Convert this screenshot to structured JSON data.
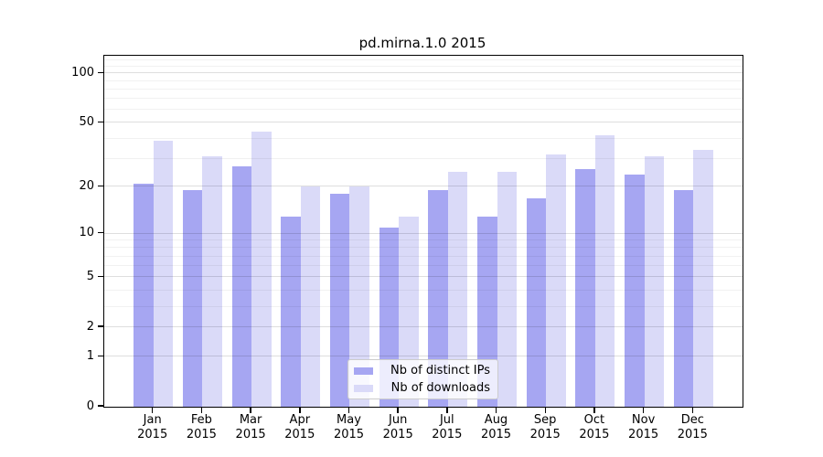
{
  "title": "pd.mirna.1.0 2015",
  "chart_data": {
    "type": "bar",
    "title": "pd.mirna.1.0 2015",
    "categories": [
      "Jan 2015",
      "Feb 2015",
      "Mar 2015",
      "Apr 2015",
      "May 2015",
      "Jun 2015",
      "Jul 2015",
      "Aug 2015",
      "Sep 2015",
      "Oct 2015",
      "Nov 2015",
      "Dec 2015"
    ],
    "series": [
      {
        "name": "Nb of distinct IPs",
        "color": "#a6a6f2",
        "values": [
          21,
          19,
          27,
          13,
          18,
          11,
          19,
          13,
          17,
          26,
          24,
          19
        ]
      },
      {
        "name": "Nb of downloads",
        "color": "#dadaf8",
        "values": [
          39,
          31,
          44,
          20,
          20,
          13,
          25,
          25,
          32,
          42,
          31,
          34
        ]
      }
    ],
    "xlabel": "",
    "ylabel": "",
    "yscale": "log1p",
    "ylim": [
      0,
      128
    ],
    "y_major_ticks": [
      0,
      1,
      2,
      5,
      10,
      20,
      50,
      100
    ],
    "y_minor_gridlines": [
      3,
      4,
      6,
      7,
      8,
      9,
      30,
      40,
      60,
      70,
      80,
      90,
      110,
      120
    ],
    "grid": true,
    "legend_position": "lower center"
  },
  "colors": {
    "background": "#ffffff",
    "spine": "#000000",
    "bar_distinct_ips": "#a6a6f2",
    "bar_downloads": "#dadaf8",
    "legend_border": "#cccccc"
  }
}
